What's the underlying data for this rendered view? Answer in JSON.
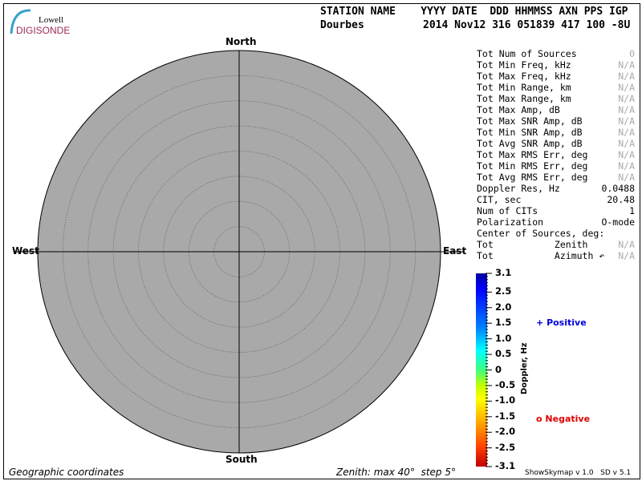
{
  "logo": {
    "line1": "Lowell",
    "line2": "DIGISONDE"
  },
  "header": {
    "row1": "STATION NAME    YYYY DATE  DDD HHMMSS AXN PPS IGP",
    "station": "Dourbes",
    "row2_values": "2014 Nov12 316 051839 417 100 -8U"
  },
  "directions": {
    "north": "North",
    "south": "South",
    "east": "East",
    "west": "West"
  },
  "stats": [
    {
      "label": "Tot Num of Sources",
      "value": "0",
      "na": true
    },
    {
      "label": "Tot Min Freq, kHz",
      "value": "N/A",
      "na": true
    },
    {
      "label": "Tot Max Freq, kHz",
      "value": "N/A",
      "na": true
    },
    {
      "label": "Tot Min Range, km",
      "value": "N/A",
      "na": true
    },
    {
      "label": "Tot Max Range, km",
      "value": "N/A",
      "na": true
    },
    {
      "label": "Tot Max Amp, dB",
      "value": "N/A",
      "na": true
    },
    {
      "label": "Tot Max SNR Amp, dB",
      "value": "N/A",
      "na": true
    },
    {
      "label": "Tot Min SNR Amp, dB",
      "value": "N/A",
      "na": true
    },
    {
      "label": "Tot Avg SNR Amp, dB",
      "value": "N/A",
      "na": true
    },
    {
      "label": "Tot Max RMS Err, deg",
      "value": "N/A",
      "na": true
    },
    {
      "label": "Tot Min RMS Err, deg",
      "value": "N/A",
      "na": true
    },
    {
      "label": "Tot Avg RMS Err, deg",
      "value": "N/A",
      "na": true
    },
    {
      "label": "Doppler Res, Hz",
      "value": "0.0488",
      "na": false
    },
    {
      "label": "CIT, sec",
      "value": "20.48",
      "na": false
    },
    {
      "label": "Num of CITs",
      "value": "1",
      "na": false
    },
    {
      "label": "Polarization",
      "value": "O-mode",
      "na": false
    },
    {
      "label": "Center of Sources, deg:",
      "value": "",
      "na": false
    },
    {
      "label": "Tot           Zenith",
      "value": "N/A",
      "na": true
    },
    {
      "label": "Tot           Azimuth ↶",
      "value": "N/A",
      "na": true
    }
  ],
  "colorbar": {
    "title": "Doppler, Hz",
    "min": -3.1,
    "max": 3.1,
    "ticks": [
      {
        "v": 3.1,
        "t": "3.1"
      },
      {
        "v": 2.5,
        "t": "2.5"
      },
      {
        "v": 2.0,
        "t": "2.0"
      },
      {
        "v": 1.5,
        "t": "1.5"
      },
      {
        "v": 1.0,
        "t": "1.0"
      },
      {
        "v": 0.5,
        "t": "0.5"
      },
      {
        "v": 0,
        "t": "0"
      },
      {
        "v": -0.5,
        "t": "-0.5"
      },
      {
        "v": -1.0,
        "t": "-1.0"
      },
      {
        "v": -1.5,
        "t": "-1.5"
      },
      {
        "v": -2.0,
        "t": "-2.0"
      },
      {
        "v": -2.5,
        "t": "-2.5"
      },
      {
        "v": -3.1,
        "t": "-3.1"
      }
    ]
  },
  "legend": {
    "positive": "Positive",
    "negative": "Negative",
    "positive_symbol": "+",
    "negative_symbol": "o",
    "positive_color": "#0000e0",
    "negative_color": "#e00000"
  },
  "plot": {
    "zenith_max_deg": 40,
    "zenith_step_deg": 5,
    "fill_color": "#a9a9a9"
  },
  "footer": {
    "left": "Geographic coordinates",
    "center": "Zenith: max 40°  step 5°",
    "right": "ShowSkymap v 1.0   SD v 5.1"
  }
}
